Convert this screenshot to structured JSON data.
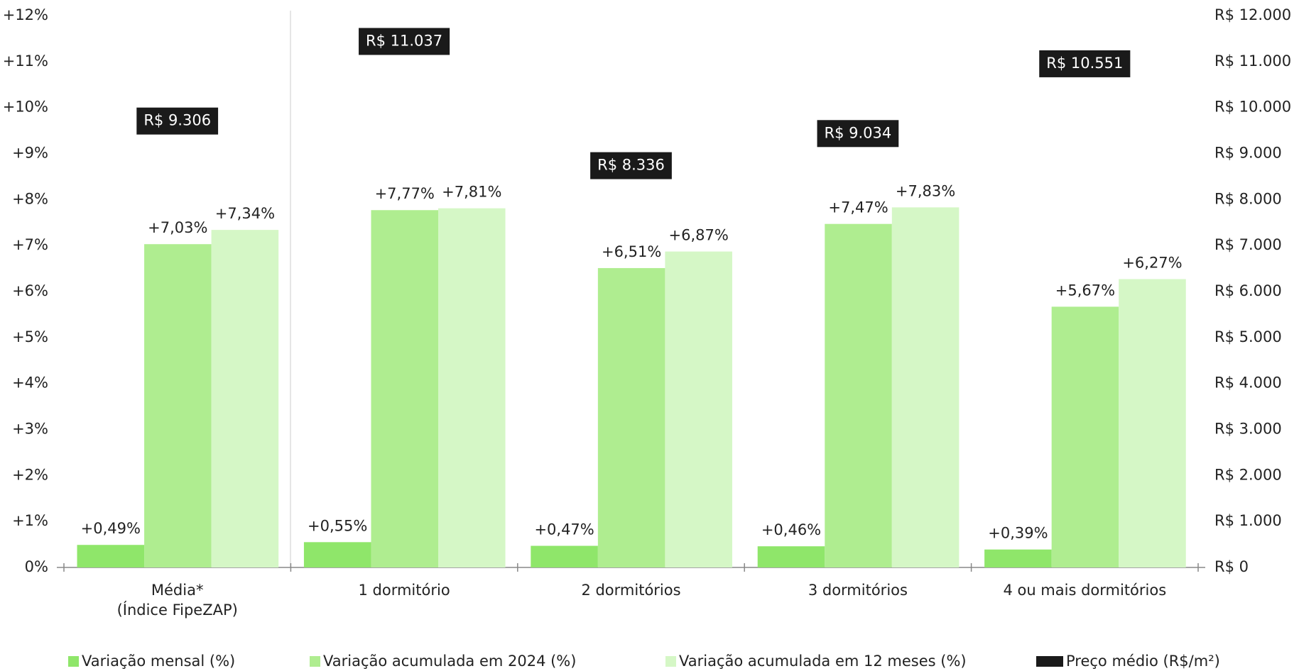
{
  "chart_data": {
    "type": "bar",
    "categories": [
      "Média*\n(Índice FipeZAP)",
      "1 dormitório",
      "2 dormitórios",
      "3 dormitórios",
      "4 ou mais dormitórios"
    ],
    "series": [
      {
        "name": "Variação mensal (%)",
        "color": "#8fe66a",
        "values": [
          0.49,
          0.55,
          0.47,
          0.46,
          0.39
        ],
        "value_labels": [
          "+0,49%",
          "+0,55%",
          "+0,47%",
          "+0,46%",
          "+0,39%"
        ]
      },
      {
        "name": "Variação acumulada em 2024 (%)",
        "color": "#afed90",
        "values": [
          7.03,
          7.77,
          6.51,
          7.47,
          5.67
        ],
        "value_labels": [
          "+7,03%",
          "+7,77%",
          "+6,51%",
          "+7,47%",
          "+5,67%"
        ]
      },
      {
        "name": "Variação acumulada em 12 meses (%)",
        "color": "#d5f7c6",
        "values": [
          7.34,
          7.81,
          6.87,
          7.83,
          6.27
        ],
        "value_labels": [
          "+7,34%",
          "+7,81%",
          "+6,87%",
          "+7,83%",
          "+6,27%"
        ]
      },
      {
        "name": "Preço médio (R$/m²)",
        "color": "#1a1a1a",
        "axis": "y2",
        "values": [
          9306,
          11037,
          8336,
          9034,
          10551
        ],
        "value_labels": [
          "R$ 9.306",
          "R$ 11.037",
          "R$ 8.336",
          "R$ 9.034",
          "R$ 10.551"
        ]
      }
    ],
    "ylim": [
      0,
      12
    ],
    "yticks": [
      {
        "value": 0,
        "label": "0%"
      },
      {
        "value": 1,
        "label": "+1%"
      },
      {
        "value": 2,
        "label": "+2%"
      },
      {
        "value": 3,
        "label": "+3%"
      },
      {
        "value": 4,
        "label": "+4%"
      },
      {
        "value": 5,
        "label": "+5%"
      },
      {
        "value": 6,
        "label": "+6%"
      },
      {
        "value": 7,
        "label": "+7%"
      },
      {
        "value": 8,
        "label": "+8%"
      },
      {
        "value": 9,
        "label": "+9%"
      },
      {
        "value": 10,
        "label": "+10%"
      },
      {
        "value": 11,
        "label": "+11%"
      },
      {
        "value": 12,
        "label": "+12%"
      }
    ],
    "y2lim": [
      0,
      12000
    ],
    "y2ticks": [
      {
        "value": 0,
        "label": "R$ 0"
      },
      {
        "value": 1000,
        "label": "R$ 1.000"
      },
      {
        "value": 2000,
        "label": "R$ 2.000"
      },
      {
        "value": 3000,
        "label": "R$ 3.000"
      },
      {
        "value": 4000,
        "label": "R$ 4.000"
      },
      {
        "value": 5000,
        "label": "R$ 5.000"
      },
      {
        "value": 6000,
        "label": "R$ 6.000"
      },
      {
        "value": 7000,
        "label": "R$ 7.000"
      },
      {
        "value": 8000,
        "label": "R$ 8.000"
      },
      {
        "value": 9000,
        "label": "R$ 9.000"
      },
      {
        "value": 10000,
        "label": "R$ 10.000"
      },
      {
        "value": 11000,
        "label": "R$ 11.000"
      },
      {
        "value": 12000,
        "label": "R$ 12.000"
      }
    ],
    "grid": false,
    "legend": "bottom"
  }
}
